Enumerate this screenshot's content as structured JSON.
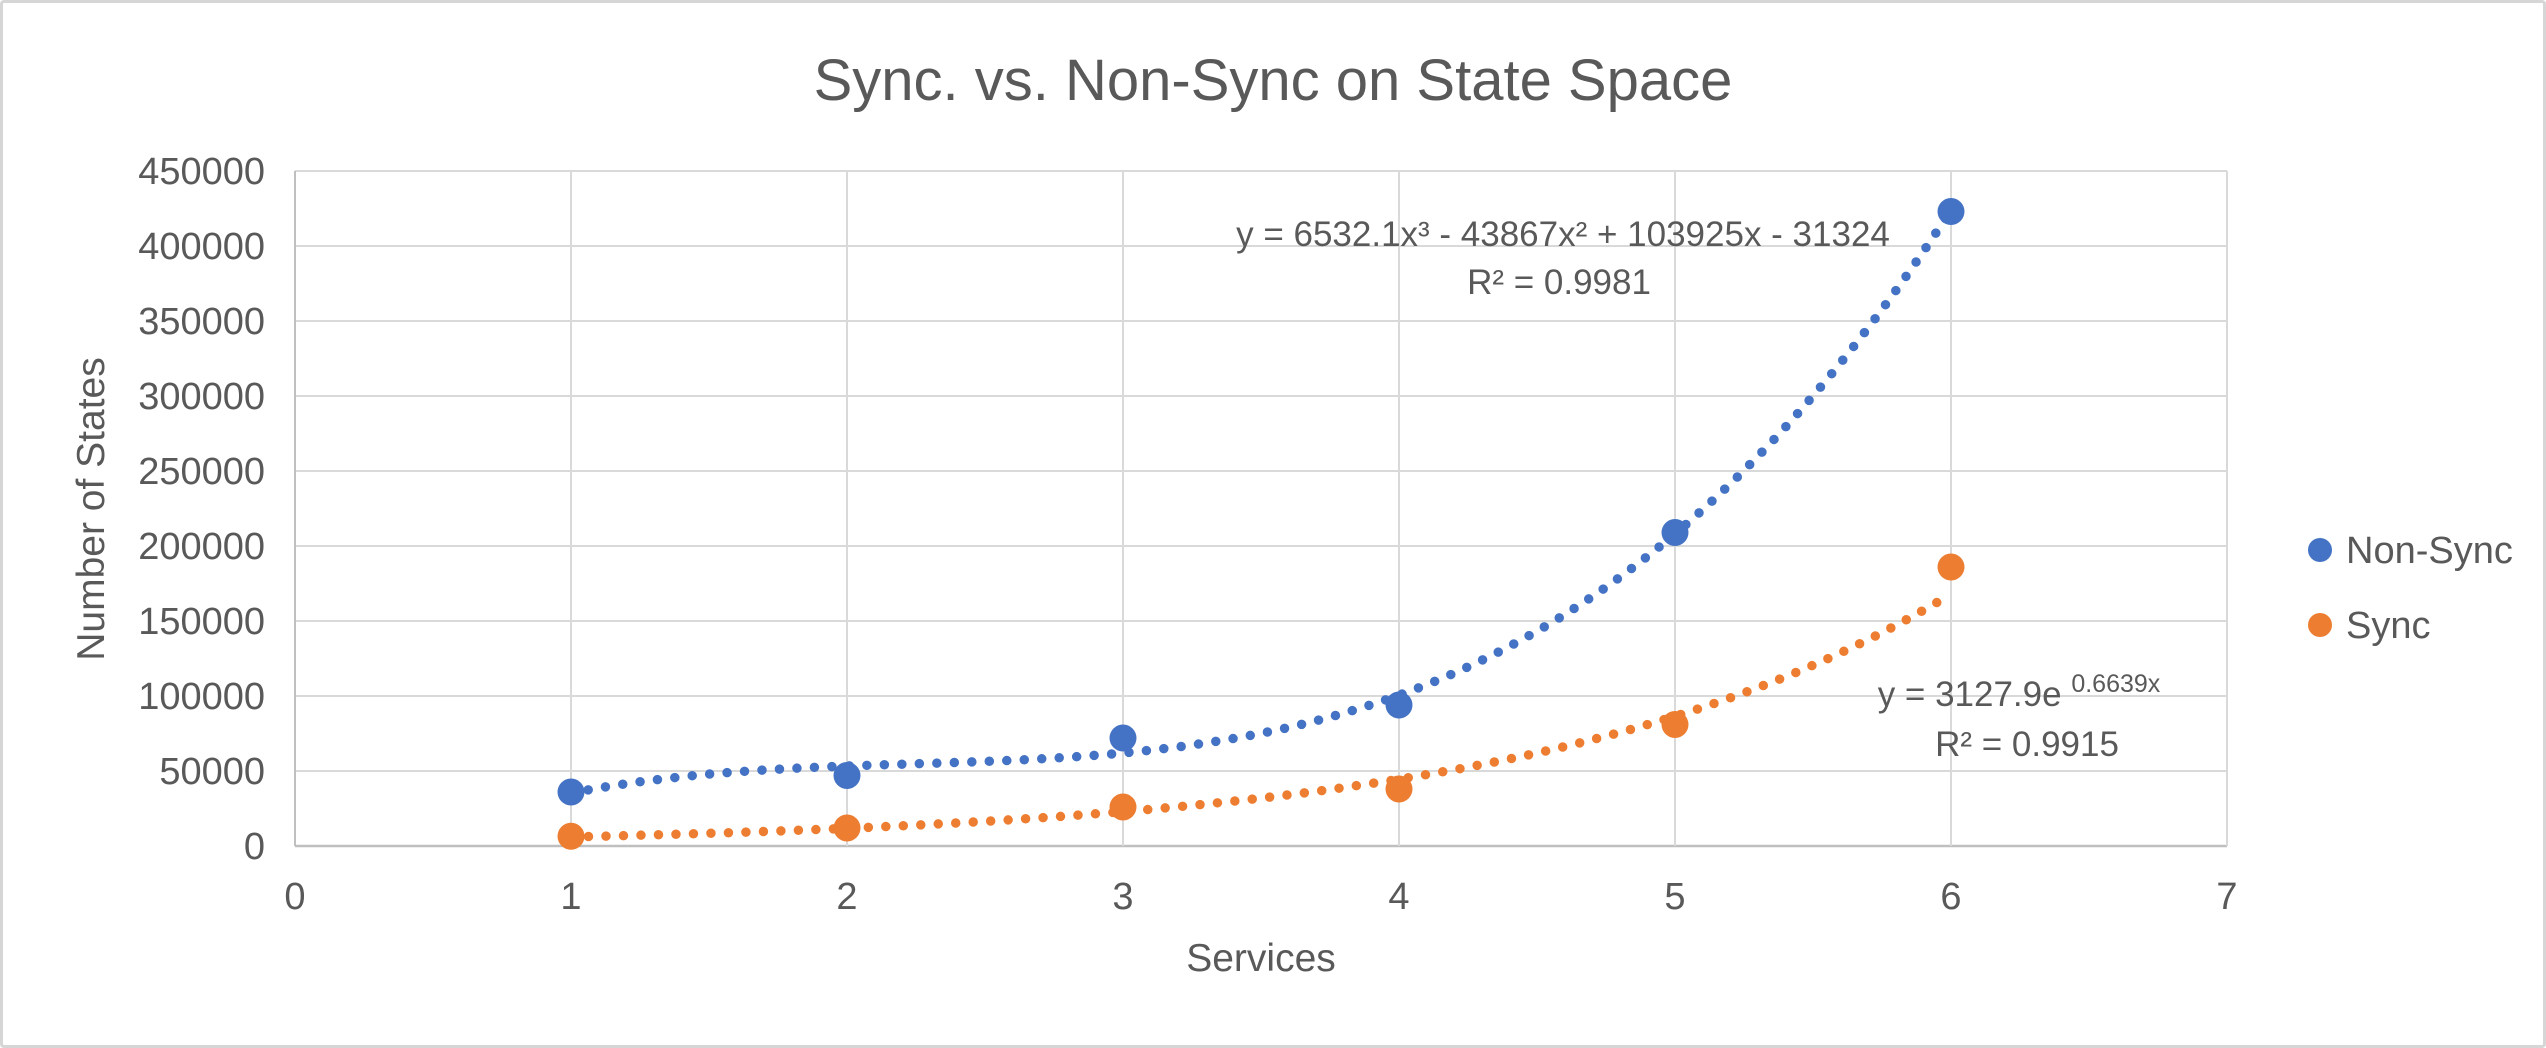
{
  "chart_data": {
    "type": "scatter",
    "title": "Sync. vs. Non-Sync on State Space",
    "xlabel": "Services",
    "ylabel": "Number of States",
    "xlim": [
      0,
      7
    ],
    "ylim": [
      0,
      450000
    ],
    "xticks": [
      0,
      1,
      2,
      3,
      4,
      5,
      6,
      7
    ],
    "yticks": [
      0,
      50000,
      100000,
      150000,
      200000,
      250000,
      300000,
      350000,
      400000,
      450000
    ],
    "x": [
      1,
      2,
      3,
      4,
      5,
      6
    ],
    "grid": true,
    "legend_position": "right",
    "series": [
      {
        "name": "Non-Sync",
        "color": "#4472C4",
        "values": [
          36000,
          47000,
          72000,
          94000,
          209000,
          423000
        ],
        "trendline": {
          "style": "dotted",
          "type": "polynomial",
          "coefficients": [
            6532.1,
            -43867,
            103925,
            -31324
          ],
          "range": [
            1,
            6
          ],
          "equation": "y = 6532.1x³ - 43867x² + 103925x - 31324",
          "r_squared": "R² = 0.9981"
        }
      },
      {
        "name": "Sync",
        "color": "#ED7D31",
        "values": [
          6500,
          12000,
          26000,
          38000,
          81000,
          186000
        ],
        "trendline": {
          "style": "dotted",
          "type": "exponential",
          "a": 3127.9,
          "b": 0.6639,
          "range": [
            1,
            6
          ],
          "equation_base": "y = 3127.9e",
          "equation_exponent": "0.6639x",
          "r_squared": "R² = 0.9915"
        }
      }
    ]
  },
  "colors": {
    "non_sync": "#4472C4",
    "sync": "#ED7D31",
    "gridline": "#D9D9D9",
    "axis_line": "#BFBFBF",
    "text": "#595959",
    "frame_border": "#D6D6D6"
  }
}
